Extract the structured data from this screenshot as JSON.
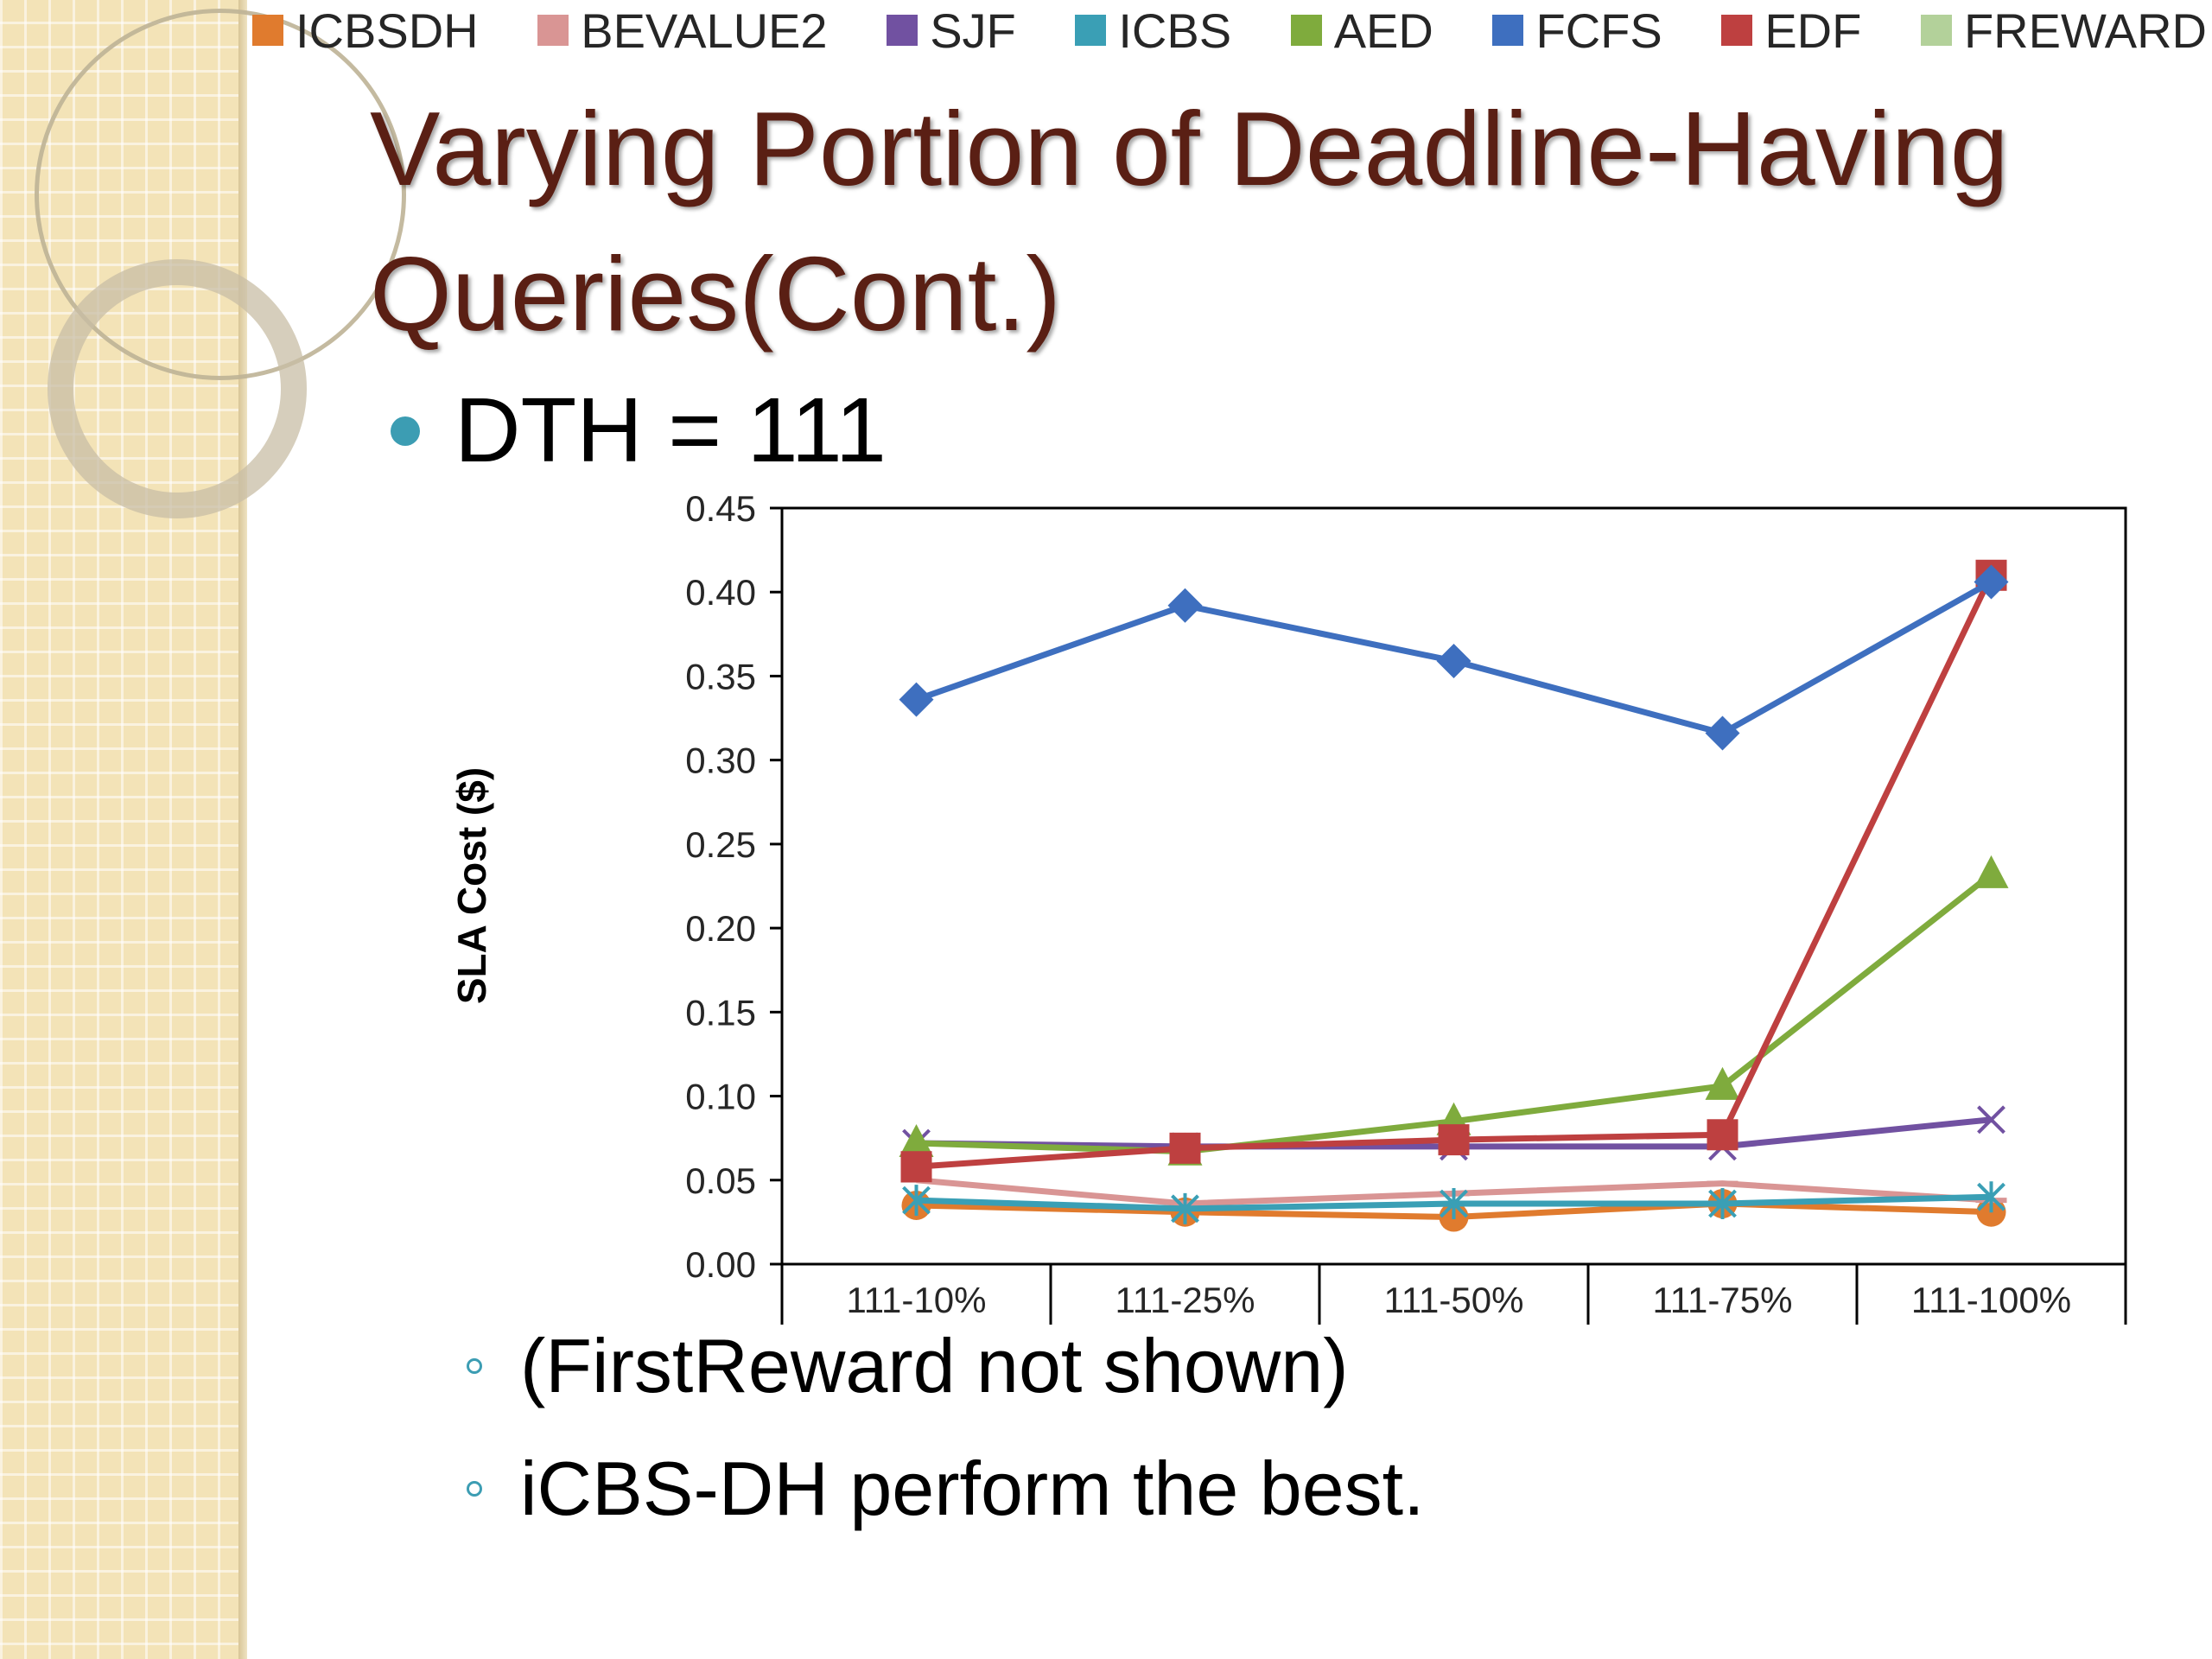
{
  "slide": {
    "title": "Varying Portion of Deadline-Having Queries(Cont.)",
    "bullet": "DTH = 111",
    "sub_bullets": [
      "(FirstReward not shown)",
      "iCBS-DH perform the best."
    ]
  },
  "legend": [
    {
      "name": "ICBSDH",
      "color": "#e07b2e"
    },
    {
      "name": "BEVALUE2",
      "color": "#d99594"
    },
    {
      "name": "SJF",
      "color": "#7151a1"
    },
    {
      "name": "ICBS",
      "color": "#3a9fb5"
    },
    {
      "name": "AED",
      "color": "#7fab3d"
    },
    {
      "name": "FCFS",
      "color": "#3e6fbf"
    },
    {
      "name": "EDF",
      "color": "#be4040"
    },
    {
      "name": "FREWARD",
      "color": "#b3d19a"
    }
  ],
  "chart_data": {
    "type": "line",
    "categories": [
      "111-10%",
      "111-25%",
      "111-50%",
      "111-75%",
      "111-100%"
    ],
    "ylabel": "SLA Cost ($)",
    "ylim": [
      0,
      0.45
    ],
    "yticks": [
      "0.00",
      "0.05",
      "0.10",
      "0.15",
      "0.20",
      "0.25",
      "0.30",
      "0.35",
      "0.40",
      "0.45"
    ],
    "grid": false,
    "series": [
      {
        "name": "ICBSDH",
        "color": "#e07b2e",
        "marker": "circle",
        "values": [
          0.035,
          0.031,
          0.028,
          0.036,
          0.031
        ]
      },
      {
        "name": "BEVALUE2",
        "color": "#d99594",
        "marker": "dash",
        "values": [
          0.05,
          0.036,
          0.042,
          0.048,
          0.038
        ]
      },
      {
        "name": "SJF",
        "color": "#7151a1",
        "marker": "x",
        "values": [
          0.072,
          0.07,
          0.07,
          0.07,
          0.086
        ]
      },
      {
        "name": "ICBS",
        "color": "#3a9fb5",
        "marker": "star",
        "values": [
          0.038,
          0.033,
          0.036,
          0.036,
          0.04
        ]
      },
      {
        "name": "AED",
        "color": "#7fab3d",
        "marker": "triangle",
        "values": [
          0.072,
          0.067,
          0.085,
          0.106,
          0.232
        ]
      },
      {
        "name": "EDF",
        "color": "#be4040",
        "marker": "square",
        "values": [
          0.058,
          0.069,
          0.074,
          0.077,
          0.41
        ]
      },
      {
        "name": "FCFS",
        "color": "#3e6fbf",
        "marker": "diamond",
        "values": [
          0.336,
          0.392,
          0.359,
          0.316,
          0.406
        ]
      }
    ]
  }
}
